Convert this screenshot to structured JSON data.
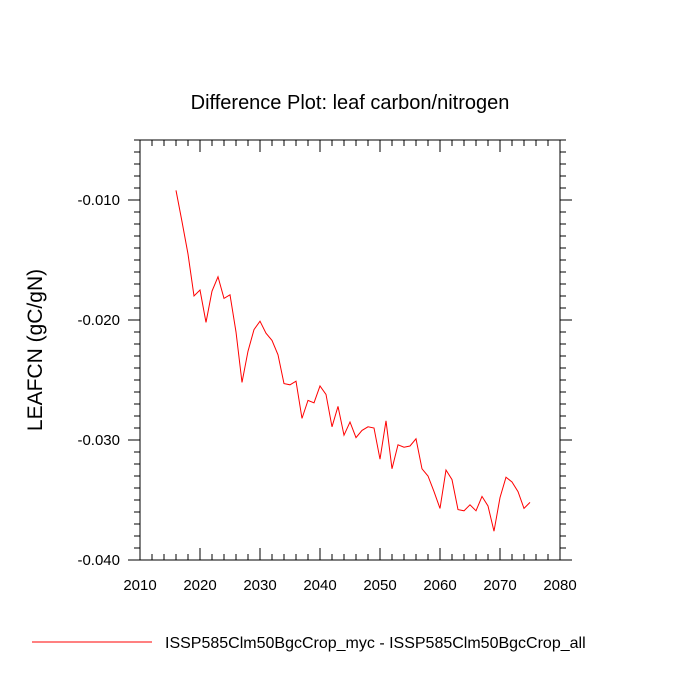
{
  "chart_data": {
    "type": "line",
    "title": "Difference Plot: leaf carbon/nitrogen",
    "xlabel": "",
    "ylabel": "LEAFCN  (gC/gN)",
    "xlim": [
      2010,
      2080
    ],
    "ylim": [
      -0.04,
      -0.005
    ],
    "x_ticks": [
      2010,
      2020,
      2030,
      2040,
      2050,
      2060,
      2070,
      2080
    ],
    "x_tick_labels": [
      "2010",
      "2020",
      "2030",
      "2040",
      "2050",
      "2060",
      "2070",
      "2080"
    ],
    "y_ticks": [
      -0.04,
      -0.03,
      -0.02,
      -0.01
    ],
    "y_tick_labels": [
      "-0.040",
      "-0.030",
      "-0.020",
      "-0.010"
    ],
    "legend_position": "bottom",
    "series": [
      {
        "name": "ISSP585Clm50BgcCrop_myc - ISSP585Clm50BgcCrop_all",
        "color": "#ff0000",
        "x": [
          2016,
          2017,
          2018,
          2019,
          2020,
          2021,
          2022,
          2023,
          2024,
          2025,
          2026,
          2027,
          2028,
          2029,
          2030,
          2031,
          2032,
          2033,
          2034,
          2035,
          2036,
          2037,
          2038,
          2039,
          2040,
          2041,
          2042,
          2043,
          2044,
          2045,
          2046,
          2047,
          2048,
          2049,
          2050,
          2051,
          2052,
          2053,
          2054,
          2055,
          2056,
          2057,
          2058,
          2059,
          2060,
          2061,
          2062,
          2063,
          2064,
          2065,
          2066,
          2067,
          2068,
          2069,
          2070,
          2071,
          2072,
          2073,
          2074,
          2075
        ],
        "values": [
          -0.0092,
          -0.0118,
          -0.0145,
          -0.018,
          -0.0175,
          -0.0202,
          -0.0176,
          -0.0164,
          -0.0182,
          -0.0179,
          -0.021,
          -0.0252,
          -0.0226,
          -0.0208,
          -0.0201,
          -0.0211,
          -0.0217,
          -0.0229,
          -0.0253,
          -0.0254,
          -0.0251,
          -0.0282,
          -0.0267,
          -0.0269,
          -0.0255,
          -0.0262,
          -0.0289,
          -0.0272,
          -0.0296,
          -0.0285,
          -0.0298,
          -0.0292,
          -0.0289,
          -0.029,
          -0.0316,
          -0.0284,
          -0.0324,
          -0.0304,
          -0.0306,
          -0.0305,
          -0.0299,
          -0.0324,
          -0.033,
          -0.0343,
          -0.0357,
          -0.0325,
          -0.0333,
          -0.0358,
          -0.0359,
          -0.0354,
          -0.0359,
          -0.0347,
          -0.0355,
          -0.0376,
          -0.0348,
          -0.0331,
          -0.0335,
          -0.0343,
          -0.0357,
          -0.0352
        ]
      }
    ]
  }
}
